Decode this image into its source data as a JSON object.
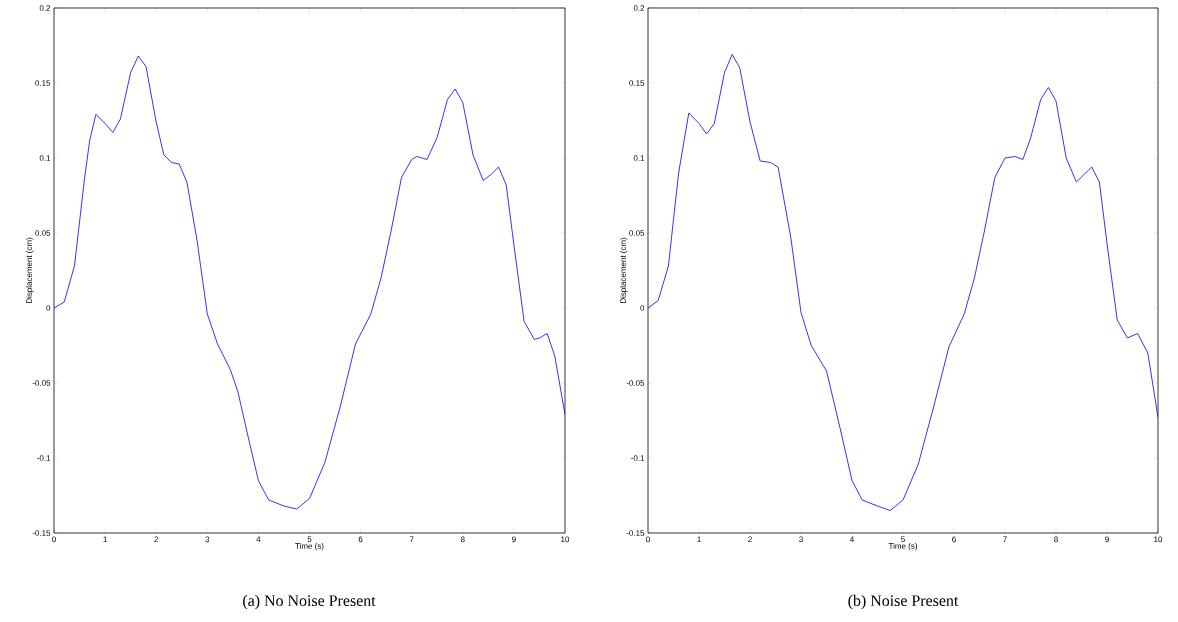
{
  "chart_data": [
    {
      "type": "line",
      "xlabel": "Time (s)",
      "ylabel": "Displacement (cm)",
      "annotations": [
        "(a) No Noise Present"
      ],
      "xlim": [
        0,
        10
      ],
      "ylim": [
        -0.15,
        0.2
      ],
      "xticks": [
        0,
        1,
        2,
        3,
        4,
        5,
        6,
        7,
        8,
        9,
        10
      ],
      "yticks": [
        -0.15,
        -0.1,
        -0.05,
        0,
        0.05,
        0.1,
        0.15,
        0.2
      ],
      "series": [
        {
          "color": "#0000ff",
          "x": [
            0,
            0.2,
            0.4,
            0.6,
            0.7,
            0.82,
            1.0,
            1.15,
            1.3,
            1.5,
            1.65,
            1.8,
            2.0,
            2.15,
            2.3,
            2.45,
            2.6,
            2.8,
            3.0,
            3.2,
            3.45,
            3.6,
            3.8,
            4.0,
            4.2,
            4.5,
            4.75,
            5.0,
            5.3,
            5.6,
            5.9,
            6.2,
            6.4,
            6.6,
            6.8,
            7.0,
            7.1,
            7.3,
            7.5,
            7.7,
            7.85,
            8.0,
            8.2,
            8.4,
            8.55,
            8.7,
            8.85,
            9.0,
            9.2,
            9.4,
            9.5,
            9.65,
            9.8,
            10.0
          ],
          "values": [
            0,
            0.004,
            0.028,
            0.087,
            0.112,
            0.129,
            0.123,
            0.117,
            0.126,
            0.157,
            0.168,
            0.161,
            0.124,
            0.102,
            0.097,
            0.096,
            0.084,
            0.045,
            -0.004,
            -0.024,
            -0.041,
            -0.056,
            -0.086,
            -0.115,
            -0.128,
            -0.132,
            -0.134,
            -0.127,
            -0.103,
            -0.066,
            -0.024,
            -0.004,
            0.02,
            0.052,
            0.087,
            0.099,
            0.101,
            0.099,
            0.114,
            0.139,
            0.146,
            0.137,
            0.102,
            0.085,
            0.089,
            0.094,
            0.082,
            0.042,
            -0.009,
            -0.021,
            -0.02,
            -0.017,
            -0.032,
            -0.071
          ]
        }
      ]
    },
    {
      "type": "line",
      "xlabel": "Time (s)",
      "ylabel": "Displacement (cm)",
      "annotations": [
        "(b) Noise Present"
      ],
      "xlim": [
        0,
        10
      ],
      "ylim": [
        -0.15,
        0.2
      ],
      "xticks": [
        0,
        1,
        2,
        3,
        4,
        5,
        6,
        7,
        8,
        9,
        10
      ],
      "yticks": [
        -0.15,
        -0.1,
        -0.05,
        0,
        0.05,
        0.1,
        0.15,
        0.2
      ],
      "series": [
        {
          "color": "#0000ff",
          "x": [
            0,
            0.2,
            0.4,
            0.6,
            0.8,
            1.0,
            1.15,
            1.3,
            1.5,
            1.65,
            1.8,
            2.0,
            2.2,
            2.4,
            2.55,
            2.8,
            3.0,
            3.2,
            3.5,
            3.8,
            4.0,
            4.2,
            4.5,
            4.75,
            5.0,
            5.3,
            5.6,
            5.9,
            6.2,
            6.4,
            6.6,
            6.8,
            7.0,
            7.2,
            7.35,
            7.5,
            7.7,
            7.85,
            8.0,
            8.2,
            8.4,
            8.7,
            8.85,
            9.0,
            9.2,
            9.4,
            9.6,
            9.8,
            10.0
          ],
          "values": [
            0,
            0.005,
            0.028,
            0.09,
            0.13,
            0.123,
            0.116,
            0.123,
            0.157,
            0.169,
            0.16,
            0.124,
            0.098,
            0.097,
            0.094,
            0.047,
            -0.003,
            -0.025,
            -0.042,
            -0.085,
            -0.115,
            -0.128,
            -0.132,
            -0.135,
            -0.128,
            -0.104,
            -0.066,
            -0.026,
            -0.004,
            0.02,
            0.052,
            0.087,
            0.1,
            0.101,
            0.099,
            0.113,
            0.139,
            0.147,
            0.138,
            0.1,
            0.084,
            0.094,
            0.084,
            0.043,
            -0.008,
            -0.02,
            -0.017,
            -0.03,
            -0.073
          ]
        }
      ]
    }
  ]
}
